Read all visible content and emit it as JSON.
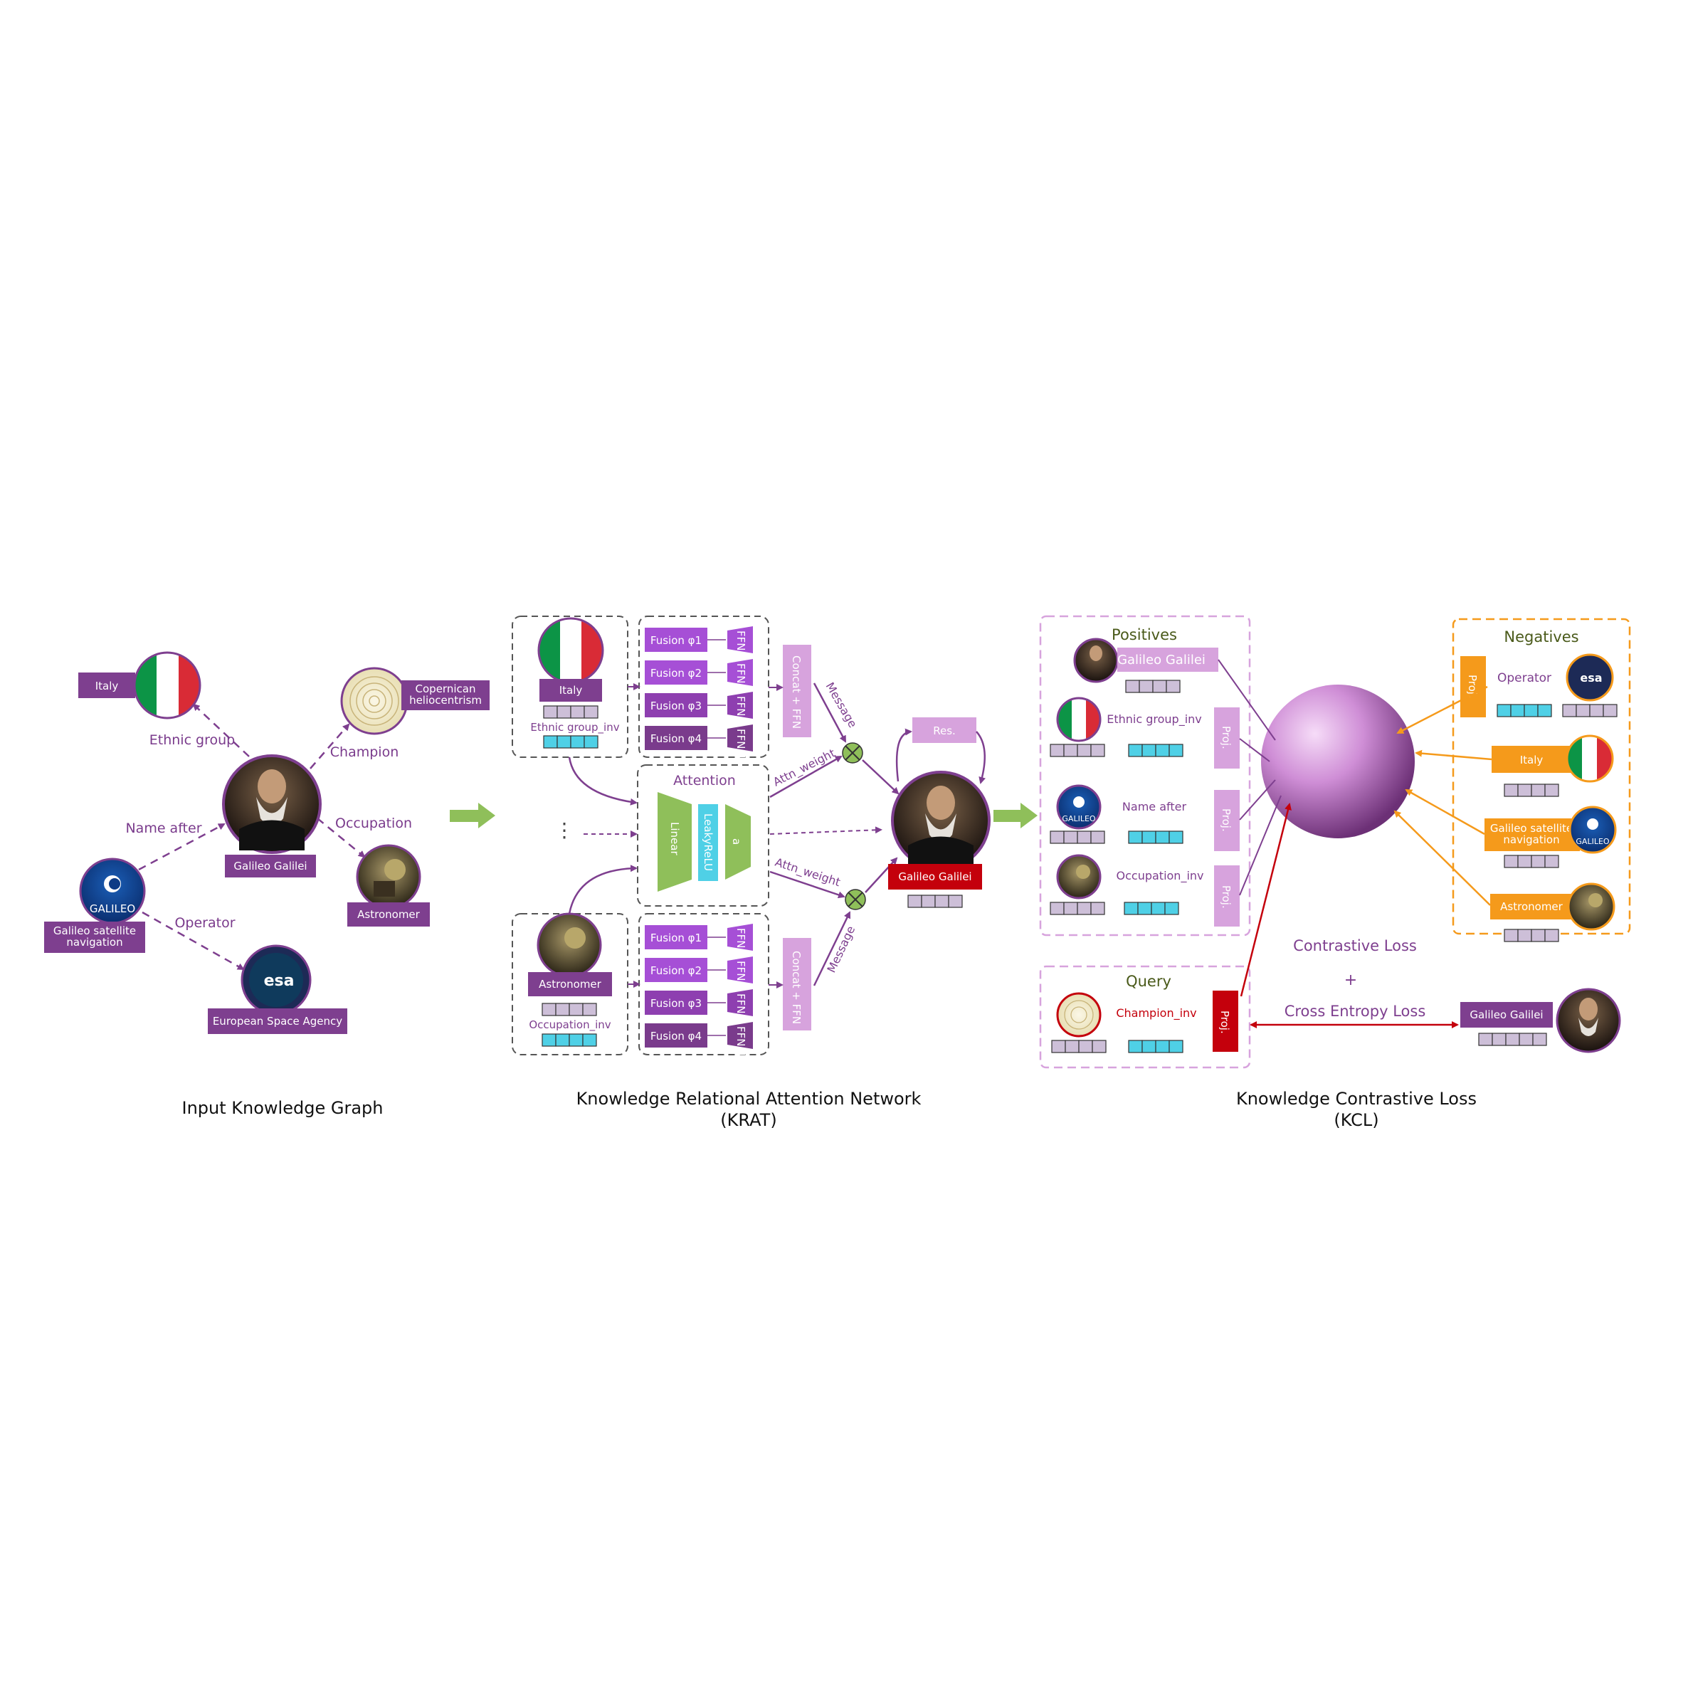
{
  "colors": {
    "purple": "#7e3f8f",
    "purple_dark": "#6a2f7b",
    "violet": "#a64fd6",
    "lilac": "#d7a3dd",
    "green": "#8fbf5a",
    "cyan": "#4fd0e6",
    "red": "#c4000c",
    "orange": "#f59a1b",
    "lavender_cell": "#cdbfd8"
  },
  "input_graph": {
    "caption": "Input Knowledge Graph",
    "nodes": {
      "center": "Galileo Galilei",
      "italy": "Italy",
      "copernican": "Copernican heliocentrism",
      "astronomer": "Astronomer",
      "galileo_nav": "Galileo satellite navigation",
      "esa": "European Space Agency",
      "galileo_logo_text": "GALILEO",
      "esa_logo_text": "esa"
    },
    "edges": {
      "ethnic_group": "Ethnic group",
      "champion": "Champion",
      "name_after": "Name after",
      "occupation": "Occupation",
      "operator": "Operator"
    }
  },
  "krat": {
    "caption_line1": "Knowledge Relational Attention Network",
    "caption_line2": "(KRAT)",
    "top_entity": "Italy",
    "top_relation": "Ethnic group_inv",
    "bottom_entity": "Astronomer",
    "bottom_relation": "Occupation_inv",
    "fusion": [
      "Fusion φ1",
      "Fusion φ2",
      "Fusion φ3",
      "Fusion φ4"
    ],
    "ffn": [
      "FFN 1",
      "FFN 2",
      "FFN 3",
      "FFN 4"
    ],
    "concat": "Concat + FFN",
    "attention": "Attention",
    "linear": "Linear",
    "leakyrelu": "LeakyReLU",
    "a": "a",
    "message": "Message",
    "attn_weight": "Attn_weight",
    "res": "Res.",
    "output_entity": "Galileo Galilei",
    "dots": "⋮"
  },
  "kcl": {
    "caption_line1": "Knowledge Contrastive Loss",
    "caption_line2": "(KCL)",
    "positives": "Positives",
    "negatives": "Negatives",
    "query": "Query",
    "pos_galileo": "Galileo Galilei",
    "pos_ethnic": "Ethnic group_inv",
    "pos_name_after": "Name after",
    "pos_occupation": "Occupation_inv",
    "neg_operator": "Operator",
    "neg_italy": "Italy",
    "neg_galileo_nav": "Galileo satellite navigation",
    "neg_astronomer": "Astronomer",
    "query_relation": "Champion_inv",
    "proj": "Proj.",
    "contrastive_loss": "Contrastive Loss",
    "plus": "+",
    "cross_entropy_loss": "Cross Entropy Loss",
    "target": "Galileo Galilei",
    "galileo_logo_text": "GALILEO",
    "esa_logo_text": "esa"
  }
}
